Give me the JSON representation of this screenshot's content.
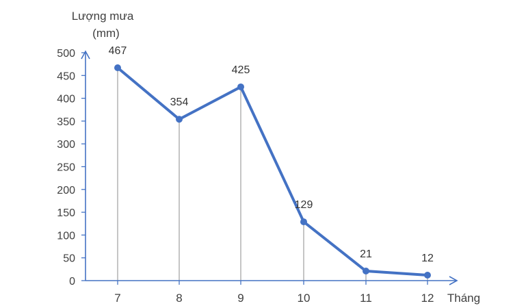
{
  "chart_data": {
    "type": "line",
    "ylabel_line1": "Lượng mưa",
    "ylabel_line2": "(mm)",
    "xlabel": "Tháng",
    "categories": [
      "7",
      "8",
      "9",
      "10",
      "11",
      "12"
    ],
    "series": [
      {
        "values": [
          467,
          354,
          425,
          129,
          21,
          12
        ]
      }
    ],
    "ylim": [
      0,
      500
    ],
    "yticks": [
      "0",
      "50",
      "100",
      "150",
      "200",
      "250",
      "300",
      "350",
      "400",
      "450",
      "500"
    ],
    "data_labels": [
      "467",
      "354",
      "425",
      "129",
      "21",
      "12"
    ],
    "drop_lines": true,
    "grid": false,
    "colors": {
      "line": "#4472C4",
      "axis": "#4472C4",
      "drop": "#a6a6a6",
      "text": "#404040"
    }
  }
}
